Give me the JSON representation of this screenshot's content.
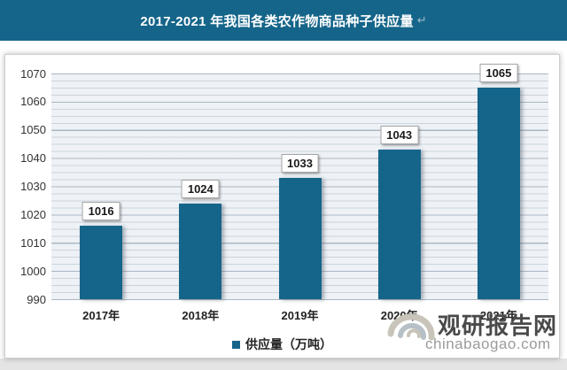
{
  "title": {
    "text": "2017-2021 年我国各类农作物商品种子供应量",
    "return_mark": "↵"
  },
  "colors": {
    "title_bar_bg": "#15658a",
    "title_text": "#ffffff",
    "bar_fill": "#15658a",
    "plot_bg": "#eef2f6",
    "gridline_major": "#a8b5c2",
    "gridline_minor": "#c5ced7",
    "frame_border": "#cfcfcf",
    "bottom_strip": "#e4e4e4",
    "watermark_brand_color": "#4a4a4a",
    "watermark_domain_color": "#9b9b9b"
  },
  "chart_data": {
    "type": "bar",
    "title": "2017-2021 年我国各类农作物商品种子供应量",
    "categories": [
      "2017年",
      "2018年",
      "2019年",
      "2020年",
      "2021年"
    ],
    "series": [
      {
        "name": "供应量（万吨）",
        "values": [
          1016,
          1024,
          1033,
          1043,
          1065
        ]
      }
    ],
    "xlabel": "",
    "ylabel": "",
    "ylim": [
      990,
      1070
    ],
    "yticks": [
      990,
      1000,
      1010,
      1020,
      1030,
      1040,
      1050,
      1060,
      1070
    ],
    "grid": "horizontal, minor every 2.5 and major every 10, on shaded plot background",
    "legend_position": "bottom-center",
    "data_labels": true
  },
  "legend": {
    "marker": "■",
    "label": "供应量（万吨）"
  },
  "watermark": {
    "logo": "swirl-logo",
    "brand": "观研报告网",
    "domain": "chinabaogao.com"
  }
}
